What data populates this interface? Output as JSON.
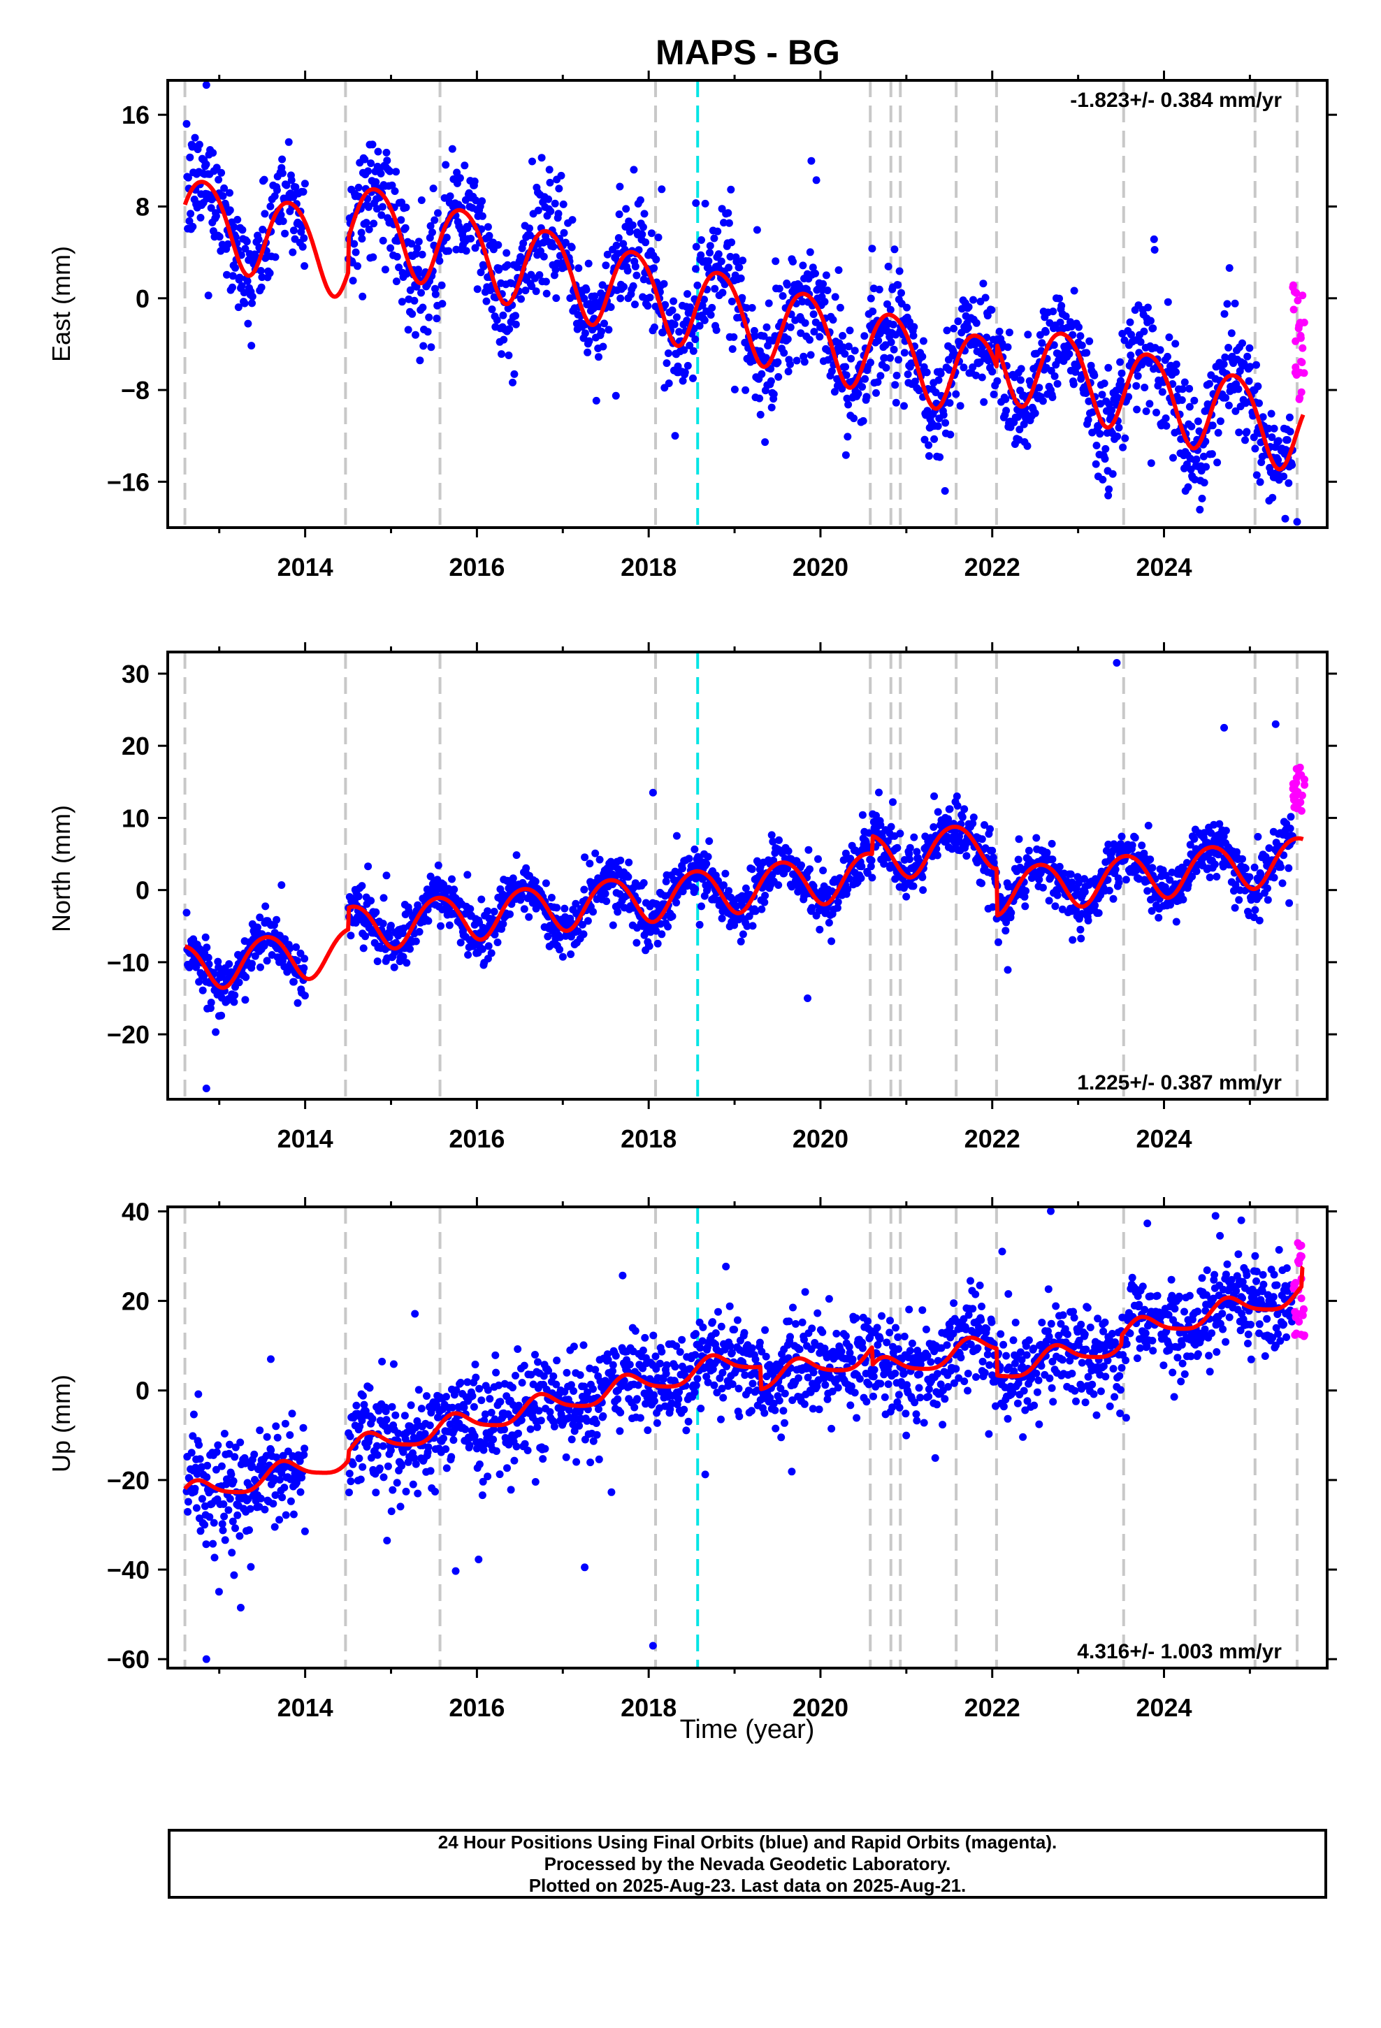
{
  "title": "MAPS - BG",
  "colors": {
    "final_points": "#0000ff",
    "rapid_points": "#ff00ff",
    "model": "#ff0000",
    "steps": "#c8c8c8",
    "antenna_change": "#00e5e5"
  },
  "xlabel": "Time (year)",
  "caption": {
    "line1": "24 Hour Positions Using Final Orbits (blue) and Rapid Orbits (magenta).",
    "line2": "Processed by the Nevada Geodetic Laboratory.",
    "line3": "Plotted on 2025-Aug-23. Last data on 2025-Aug-21."
  },
  "chart_data": [
    {
      "type": "scatter",
      "component": "east",
      "ylabel": "East (mm)",
      "rate_text": "-1.823+/- 0.384 mm/yr",
      "rate_position": "top-right",
      "xlim": [
        2012.4,
        2025.9
      ],
      "ylim": [
        -20,
        19
      ],
      "xticks": [
        2014,
        2016,
        2018,
        2020,
        2022,
        2024
      ],
      "yticks": [
        -16,
        -8,
        0,
        8,
        16
      ],
      "model": {
        "rate": -1.823,
        "rate_sigma": 0.384,
        "intercept_at_2012_6": 7.3,
        "annual_amplitude": 3.6,
        "annual_peak_year_fraction": 0.83,
        "semiannual_amplitude": 0.4,
        "semiannual_phase_year_fraction": 0.1,
        "offsets": [
          {
            "x": 2014.5,
            "dy": 3.0
          },
          {
            "x": 2022.05,
            "dy": 2.0
          }
        ],
        "scatter_sigma": 2.4
      },
      "data_gap": [
        2014.0,
        2014.5
      ],
      "rapid": {
        "x_start": 2025.5,
        "x_end": 2025.64,
        "y_min": -10.0,
        "y_max": 1.5
      },
      "outliers": [
        {
          "x": 2012.85,
          "y": 18.6
        },
        {
          "x": 2025.55,
          "y": -19.5
        },
        {
          "x": 2021.45,
          "y": -16.8
        },
        {
          "x": 2023.35,
          "y": -17.2
        },
        {
          "x": 2024.25,
          "y": -16.8
        },
        {
          "x": 2018.55,
          "y": 8.3
        }
      ]
    },
    {
      "type": "scatter",
      "component": "north",
      "ylabel": "North (mm)",
      "rate_text": "1.225+/- 0.387 mm/yr",
      "rate_position": "bottom-right",
      "xlim": [
        2012.4,
        2025.9
      ],
      "ylim": [
        -29,
        33
      ],
      "xticks": [
        2014,
        2016,
        2018,
        2020,
        2022,
        2024
      ],
      "yticks": [
        -20,
        -10,
        0,
        10,
        20,
        30
      ],
      "model": {
        "rate": 1.225,
        "rate_sigma": 0.387,
        "intercept_at_2012_6": -10.6,
        "annual_amplitude": 3.2,
        "annual_peak_year_fraction": 0.55,
        "semiannual_amplitude": 0.3,
        "semiannual_phase_year_fraction": 0.3,
        "offsets": [
          {
            "x": 2014.5,
            "dy": 3.0
          },
          {
            "x": 2020.6,
            "dy": 2.5
          },
          {
            "x": 2022.05,
            "dy": -6.5
          }
        ],
        "scatter_sigma": 1.8
      },
      "data_gap": [
        2014.0,
        2014.5
      ],
      "rapid": {
        "x_start": 2025.5,
        "x_end": 2025.64,
        "y_min": 10.5,
        "y_max": 18.0
      },
      "outliers": [
        {
          "x": 2023.45,
          "y": 31.5
        },
        {
          "x": 2012.85,
          "y": -27.5
        },
        {
          "x": 2018.05,
          "y": 13.5
        },
        {
          "x": 2019.85,
          "y": -15.0
        },
        {
          "x": 2024.7,
          "y": 22.5
        },
        {
          "x": 2025.3,
          "y": 23.0
        }
      ]
    },
    {
      "type": "scatter",
      "component": "up",
      "ylabel": "Up (mm)",
      "rate_text": "4.316+/- 1.003 mm/yr",
      "rate_position": "bottom-right",
      "xlim": [
        2012.4,
        2025.9
      ],
      "ylim": [
        -62,
        41
      ],
      "xticks": [
        2014,
        2016,
        2018,
        2020,
        2022,
        2024
      ],
      "yticks": [
        -60,
        -40,
        -20,
        0,
        20,
        40
      ],
      "model": {
        "rate": 4.316,
        "rate_sigma": 1.003,
        "intercept_at_2012_6": -23.5,
        "annual_amplitude": 2.4,
        "annual_peak_year_fraction": 0.75,
        "semiannual_amplitude": 0.5,
        "semiannual_phase_year_fraction": 0.2,
        "offsets": [
          {
            "x": 2014.5,
            "dy": 2.0
          },
          {
            "x": 2019.3,
            "dy": -5.0
          },
          {
            "x": 2020.6,
            "dy": -4.0
          },
          {
            "x": 2022.05,
            "dy": -6.0
          },
          {
            "x": 2023.5,
            "dy": 2.0
          },
          {
            "x": 2025.6,
            "dy": 4.0
          }
        ],
        "scatter_sigma": 5.2
      },
      "data_gap": [
        2014.0,
        2014.5
      ],
      "rapid": {
        "x_start": 2025.5,
        "x_end": 2025.64,
        "y_min": 12.0,
        "y_max": 33.5
      },
      "outliers": [
        {
          "x": 2012.85,
          "y": -60.0
        },
        {
          "x": 2018.05,
          "y": -57.0
        },
        {
          "x": 2024.6,
          "y": 39.0
        },
        {
          "x": 2024.9,
          "y": 38.0
        },
        {
          "x": 2013.6,
          "y": 7.0
        },
        {
          "x": 2013.25,
          "y": -48.5
        }
      ]
    }
  ],
  "step_lines": [
    2012.6,
    2014.47,
    2015.57,
    2018.08,
    2020.58,
    2020.82,
    2020.93,
    2021.58,
    2022.05,
    2023.53,
    2025.06,
    2025.55
  ],
  "antenna_lines": [
    2018.57
  ]
}
